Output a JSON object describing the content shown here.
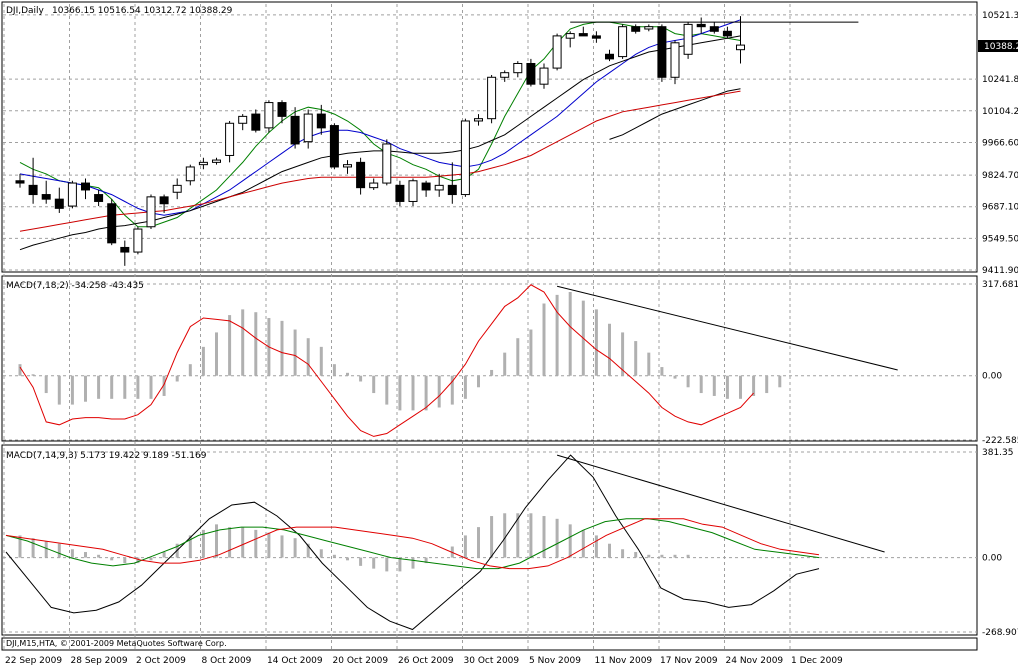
{
  "chart_data": [
    {
      "type": "candlestick",
      "title": "DJI,Daily",
      "ohlc_label": "10366.15 10516.54 10312.72 10388.29",
      "last_price_label": "10388.2",
      "price_axis_ticks": [
        "10521.3",
        "10241.8",
        "10104.2",
        "9966.60",
        "9824.70",
        "9687.10",
        "9549.50",
        "9411.90"
      ],
      "ylim": [
        9411.9,
        10560
      ],
      "dates": [
        "22 Sep 2009",
        "28 Sep 2009",
        "2 Oct 2009",
        "8 Oct 2009",
        "14 Oct 2009",
        "20 Oct 2009",
        "26 Oct 2009",
        "30 Oct 2009",
        "5 Nov 2009",
        "11 Nov 2009",
        "17 Nov 2009",
        "24 Nov 2009",
        "1 Dec 2009"
      ],
      "candles": [
        {
          "o": 9800,
          "h": 9830,
          "l": 9770,
          "c": 9790
        },
        {
          "o": 9780,
          "h": 9900,
          "l": 9700,
          "c": 9740
        },
        {
          "o": 9740,
          "h": 9800,
          "l": 9700,
          "c": 9720
        },
        {
          "o": 9720,
          "h": 9770,
          "l": 9660,
          "c": 9680
        },
        {
          "o": 9690,
          "h": 9800,
          "l": 9680,
          "c": 9790
        },
        {
          "o": 9790,
          "h": 9810,
          "l": 9720,
          "c": 9760
        },
        {
          "o": 9740,
          "h": 9760,
          "l": 9690,
          "c": 9710
        },
        {
          "o": 9700,
          "h": 9720,
          "l": 9520,
          "c": 9530
        },
        {
          "o": 9510,
          "h": 9540,
          "l": 9430,
          "c": 9490
        },
        {
          "o": 9490,
          "h": 9600,
          "l": 9480,
          "c": 9590
        },
        {
          "o": 9600,
          "h": 9740,
          "l": 9590,
          "c": 9730
        },
        {
          "o": 9730,
          "h": 9740,
          "l": 9660,
          "c": 9700
        },
        {
          "o": 9750,
          "h": 9810,
          "l": 9720,
          "c": 9780
        },
        {
          "o": 9800,
          "h": 9870,
          "l": 9780,
          "c": 9860
        },
        {
          "o": 9870,
          "h": 9900,
          "l": 9850,
          "c": 9880
        },
        {
          "o": 9880,
          "h": 9900,
          "l": 9870,
          "c": 9890
        },
        {
          "o": 9910,
          "h": 10060,
          "l": 9880,
          "c": 10050
        },
        {
          "o": 10050,
          "h": 10090,
          "l": 10020,
          "c": 10080
        },
        {
          "o": 10090,
          "h": 10110,
          "l": 10010,
          "c": 10020
        },
        {
          "o": 10030,
          "h": 10150,
          "l": 10010,
          "c": 10140
        },
        {
          "o": 10140,
          "h": 10150,
          "l": 10050,
          "c": 10080
        },
        {
          "o": 10080,
          "h": 10120,
          "l": 9940,
          "c": 9960
        },
        {
          "o": 9970,
          "h": 10110,
          "l": 9940,
          "c": 10090
        },
        {
          "o": 10090,
          "h": 10130,
          "l": 10000,
          "c": 10030
        },
        {
          "o": 10040,
          "h": 10050,
          "l": 9850,
          "c": 9860
        },
        {
          "o": 9860,
          "h": 9890,
          "l": 9830,
          "c": 9870
        },
        {
          "o": 9880,
          "h": 9900,
          "l": 9740,
          "c": 9770
        },
        {
          "o": 9770,
          "h": 9810,
          "l": 9760,
          "c": 9790
        },
        {
          "o": 9790,
          "h": 9980,
          "l": 9780,
          "c": 9960
        },
        {
          "o": 9780,
          "h": 9800,
          "l": 9690,
          "c": 9710
        },
        {
          "o": 9710,
          "h": 9810,
          "l": 9690,
          "c": 9800
        },
        {
          "o": 9790,
          "h": 9800,
          "l": 9730,
          "c": 9760
        },
        {
          "o": 9760,
          "h": 9830,
          "l": 9730,
          "c": 9780
        },
        {
          "o": 9780,
          "h": 9880,
          "l": 9700,
          "c": 9740
        },
        {
          "o": 9740,
          "h": 10070,
          "l": 9730,
          "c": 10060
        },
        {
          "o": 10060,
          "h": 10090,
          "l": 10040,
          "c": 10070
        },
        {
          "o": 10070,
          "h": 10260,
          "l": 10050,
          "c": 10250
        },
        {
          "o": 10250,
          "h": 10280,
          "l": 10230,
          "c": 10270
        },
        {
          "o": 10270,
          "h": 10320,
          "l": 10250,
          "c": 10310
        },
        {
          "o": 10310,
          "h": 10330,
          "l": 10210,
          "c": 10220
        },
        {
          "o": 10220,
          "h": 10310,
          "l": 10200,
          "c": 10290
        },
        {
          "o": 10290,
          "h": 10440,
          "l": 10280,
          "c": 10430
        },
        {
          "o": 10420,
          "h": 10450,
          "l": 10380,
          "c": 10440
        },
        {
          "o": 10440,
          "h": 10470,
          "l": 10430,
          "c": 10430
        },
        {
          "o": 10430,
          "h": 10450,
          "l": 10400,
          "c": 10420
        },
        {
          "o": 10350,
          "h": 10370,
          "l": 10320,
          "c": 10330
        },
        {
          "o": 10340,
          "h": 10480,
          "l": 10330,
          "c": 10470
        },
        {
          "o": 10470,
          "h": 10480,
          "l": 10440,
          "c": 10450
        },
        {
          "o": 10460,
          "h": 10480,
          "l": 10450,
          "c": 10470
        },
        {
          "o": 10470,
          "h": 10480,
          "l": 10230,
          "c": 10250
        },
        {
          "o": 10250,
          "h": 10410,
          "l": 10220,
          "c": 10400
        },
        {
          "o": 10350,
          "h": 10490,
          "l": 10330,
          "c": 10480
        },
        {
          "o": 10480,
          "h": 10510,
          "l": 10440,
          "c": 10470
        },
        {
          "o": 10470,
          "h": 10490,
          "l": 10440,
          "c": 10450
        },
        {
          "o": 10450,
          "h": 10470,
          "l": 10420,
          "c": 10430
        },
        {
          "o": 10370,
          "h": 10516,
          "l": 10310,
          "c": 10390
        }
      ],
      "overlays": [
        {
          "color": "#008000",
          "values": [
            9880,
            9850,
            9830,
            9800,
            9790,
            9780,
            9770,
            9720,
            9650,
            9600,
            9600,
            9620,
            9640,
            9680,
            9720,
            9760,
            9820,
            9880,
            9950,
            10010,
            10060,
            10100,
            10120,
            10110,
            10090,
            10060,
            10020,
            9960,
            9920,
            9900,
            9870,
            9850,
            9820,
            9800,
            9810,
            9850,
            9960,
            10080,
            10180,
            10280,
            10330,
            10400,
            10460,
            10480,
            10490,
            10490,
            10480,
            10470,
            10470,
            10470,
            10440,
            10430,
            10440,
            10430,
            10420,
            10410
          ]
        },
        {
          "color": "#0000cc",
          "values": [
            9830,
            9820,
            9810,
            9800,
            9790,
            9780,
            9760,
            9740,
            9710,
            9680,
            9660,
            9650,
            9660,
            9670,
            9700,
            9730,
            9760,
            9800,
            9840,
            9880,
            9920,
            9960,
            9990,
            10010,
            10020,
            10020,
            10010,
            9990,
            9970,
            9940,
            9920,
            9900,
            9880,
            9870,
            9860,
            9870,
            9890,
            9920,
            9960,
            10000,
            10040,
            10080,
            10130,
            10180,
            10230,
            10270,
            10310,
            10350,
            10380,
            10400,
            10410,
            10420,
            10440,
            10460,
            10480,
            10500
          ]
        },
        {
          "color": "#000000",
          "values": [
            9500,
            9520,
            9535,
            9550,
            9565,
            9575,
            9590,
            9600,
            9605,
            9615,
            9625,
            9640,
            9655,
            9670,
            9690,
            9710,
            9730,
            9750,
            9780,
            9810,
            9840,
            9860,
            9880,
            9900,
            9910,
            9920,
            9925,
            9930,
            9930,
            9925,
            9920,
            9920,
            9920,
            9925,
            9935,
            9950,
            9975,
            10000,
            10040,
            10080,
            10120,
            10160,
            10200,
            10240,
            10270,
            10300,
            10320,
            10340,
            10360,
            10370,
            10380,
            10390,
            10400,
            10410,
            10420,
            10430
          ]
        },
        {
          "color": "#000000",
          "values": [
            null,
            null,
            null,
            null,
            null,
            null,
            null,
            null,
            null,
            null,
            null,
            null,
            null,
            null,
            null,
            null,
            null,
            null,
            null,
            null,
            null,
            null,
            null,
            null,
            null,
            null,
            null,
            null,
            null,
            null,
            null,
            null,
            null,
            null,
            null,
            null,
            null,
            null,
            null,
            null,
            null,
            null,
            null,
            null,
            null,
            9980,
            10000,
            10030,
            10060,
            10090,
            10110,
            10130,
            10150,
            10170,
            10190,
            10200
          ]
        },
        {
          "color": "#cc0000",
          "values": [
            9580,
            9590,
            9600,
            9610,
            9620,
            9630,
            9640,
            9650,
            9655,
            9660,
            9665,
            9670,
            9680,
            9690,
            9700,
            9715,
            9730,
            9745,
            9760,
            9775,
            9790,
            9800,
            9810,
            9815,
            9815,
            9815,
            9815,
            9815,
            9815,
            9815,
            9815,
            9815,
            9820,
            9825,
            9830,
            9840,
            9855,
            9870,
            9890,
            9910,
            9940,
            9970,
            10000,
            10030,
            10060,
            10080,
            10100,
            10110,
            10120,
            10130,
            10140,
            10150,
            10160,
            10170,
            10180,
            10190
          ]
        }
      ],
      "resistance_line": {
        "from_index": 42,
        "to_index": 64,
        "value": 10490
      }
    },
    {
      "type": "bar",
      "label": "MACD(7,18,2) -34.258 -43.435",
      "axis_ticks": [
        "317.681",
        "0.00",
        "-222.585"
      ],
      "ylim": [
        -222.585,
        317.681
      ],
      "histogram": [
        40,
        5,
        -60,
        -100,
        -100,
        -90,
        -80,
        -80,
        -80,
        -80,
        -80,
        -70,
        -20,
        40,
        100,
        150,
        210,
        230,
        220,
        200,
        190,
        160,
        130,
        100,
        40,
        10,
        -20,
        -60,
        -100,
        -120,
        -120,
        -120,
        -110,
        -100,
        -80,
        -40,
        20,
        80,
        130,
        160,
        250,
        280,
        290,
        260,
        230,
        180,
        150,
        120,
        80,
        30,
        -10,
        -40,
        -60,
        -70,
        -80,
        -80,
        -70,
        -60,
        -40
      ],
      "signal_line": [
        30,
        -40,
        -160,
        -170,
        -150,
        -145,
        -145,
        -150,
        -150,
        -135,
        -100,
        -30,
        80,
        170,
        200,
        195,
        190,
        165,
        130,
        100,
        80,
        70,
        40,
        -20,
        -80,
        -140,
        -190,
        -210,
        -200,
        -170,
        -140,
        -110,
        -70,
        -20,
        40,
        120,
        180,
        240,
        270,
        315,
        290,
        220,
        170,
        130,
        90,
        60,
        20,
        -20,
        -60,
        -110,
        -140,
        -160,
        -170,
        -150,
        -130,
        -110,
        -60
      ],
      "trend_line": {
        "from_index": 41,
        "to_index": 67,
        "from_value": 310,
        "to_value": 20
      }
    },
    {
      "type": "line",
      "label": "MACD(7,14,9,3) 5.173 19.422 9.189 -51.169",
      "axis_ticks": [
        "381.35",
        "0.00",
        "-268.907"
      ],
      "ylim": [
        -268.907,
        381.35
      ],
      "histogram": [
        80,
        70,
        60,
        50,
        30,
        20,
        10,
        -10,
        -20,
        -20,
        -10,
        20,
        50,
        80,
        100,
        120,
        110,
        110,
        100,
        90,
        80,
        70,
        50,
        30,
        10,
        -10,
        -30,
        -40,
        -50,
        -50,
        -40,
        -20,
        0,
        40,
        80,
        110,
        150,
        160,
        160,
        160,
        150,
        140,
        120,
        100,
        80,
        50,
        30,
        20,
        10,
        10,
        10,
        10
      ],
      "fast_line": [
        20,
        -80,
        -180,
        -200,
        -190,
        -160,
        -100,
        -20,
        60,
        140,
        190,
        200,
        150,
        80,
        -20,
        -100,
        -180,
        -230,
        -260,
        -190,
        -120,
        -50,
        60,
        180,
        280,
        370,
        290,
        150,
        30,
        -110,
        -150,
        -160,
        -180,
        -170,
        -120,
        -60,
        -40
      ],
      "signal_line": [
        80,
        60,
        30,
        0,
        -20,
        -30,
        -20,
        10,
        40,
        80,
        100,
        110,
        110,
        100,
        80,
        60,
        40,
        20,
        0,
        -10,
        -20,
        -30,
        -40,
        -40,
        -20,
        20,
        60,
        100,
        130,
        140,
        140,
        130,
        110,
        90,
        60,
        30,
        20,
        10,
        0
      ],
      "slow_line": [
        80,
        70,
        60,
        50,
        40,
        30,
        10,
        -10,
        -20,
        -20,
        -10,
        10,
        40,
        70,
        100,
        110,
        110,
        110,
        100,
        90,
        80,
        70,
        50,
        20,
        -10,
        -30,
        -40,
        -40,
        -30,
        0,
        40,
        80,
        110,
        140,
        140,
        140,
        120,
        110,
        80,
        50,
        30,
        20,
        10
      ],
      "trend_line": {
        "from_index": 41,
        "to_index": 66,
        "from_value": 370,
        "to_value": 20
      }
    }
  ],
  "footer_label": "DJI,M15,HTA, © 2001-2009 MetaQuotes Software Corp."
}
